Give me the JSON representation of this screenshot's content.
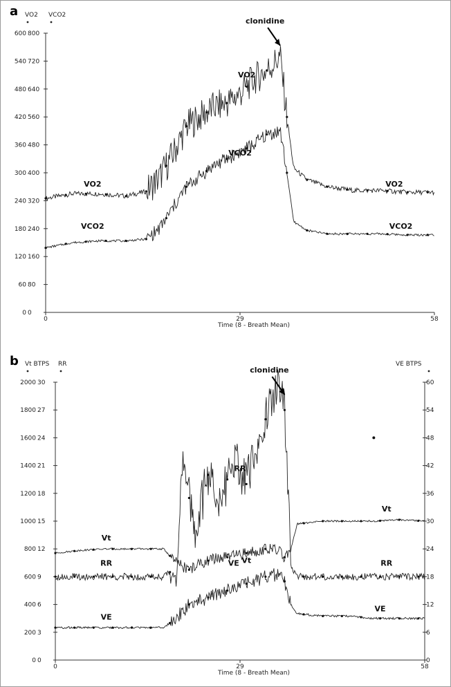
{
  "chart_data": [
    {
      "panel_label": "a",
      "type": "line",
      "left_axis_titles": [
        "VO2",
        "VCO2"
      ],
      "left_ticks": {
        "vo2": [
          0,
          60,
          120,
          180,
          240,
          300,
          360,
          420,
          480,
          540,
          600
        ],
        "vco2": [
          0,
          80,
          160,
          240,
          320,
          400,
          480,
          560,
          640,
          720,
          800
        ]
      },
      "xlabel": "Time (8 - Breath Mean)",
      "x_ticks": [
        0,
        29,
        58
      ],
      "xlim": [
        0,
        58
      ],
      "annotation": "clonidine",
      "annotation_x": 35,
      "series": [
        {
          "name": "VO2",
          "key": "vo2",
          "x": [
            0,
            4,
            8,
            12,
            15,
            17,
            19,
            21,
            23,
            25,
            27,
            29,
            31,
            33,
            35,
            36,
            37,
            39,
            42,
            46,
            50,
            54
          ],
          "y": [
            245,
            255,
            255,
            250,
            260,
            290,
            340,
            400,
            420,
            440,
            450,
            470,
            500,
            520,
            550,
            420,
            310,
            285,
            270,
            262,
            262,
            258
          ],
          "labels": [
            {
              "x": 7,
              "y": 270,
              "text": "VO2"
            },
            {
              "x": 30,
              "y": 505,
              "text": "VO2"
            },
            {
              "x": 52,
              "y": 270,
              "text": "VO2"
            }
          ]
        },
        {
          "name": "VCO2",
          "key": "vco2",
          "x": [
            0,
            4,
            8,
            12,
            15,
            17,
            19,
            21,
            23,
            25,
            27,
            29,
            31,
            33,
            35,
            36,
            37,
            39,
            42,
            46,
            50,
            54
          ],
          "y": [
            185,
            200,
            205,
            205,
            210,
            240,
            300,
            360,
            390,
            420,
            440,
            460,
            480,
            510,
            520,
            400,
            260,
            235,
            225,
            225,
            225,
            222
          ],
          "labels": [
            {
              "x": 7,
              "y": 240,
              "text": "VCO2"
            },
            {
              "x": 29,
              "y": 450,
              "text": "VCO2"
            },
            {
              "x": 53,
              "y": 240,
              "text": "VCO2"
            }
          ]
        }
      ]
    },
    {
      "panel_label": "b",
      "type": "line",
      "left_axis_titles": [
        "Vt BTPS",
        "RR"
      ],
      "right_axis_title": "VE BTPS",
      "left_ticks": {
        "vt": [
          0,
          200,
          400,
          600,
          800,
          1000,
          1200,
          1400,
          1600,
          1800,
          2000
        ],
        "rr": [
          0,
          3,
          6,
          9,
          12,
          15,
          18,
          21,
          24,
          27,
          30
        ]
      },
      "right_ticks": [
        0,
        6,
        12,
        18,
        24,
        30,
        36,
        42,
        48,
        54,
        60
      ],
      "xlabel": "Time (8 - Breath Mean)",
      "x_ticks": [
        0,
        29,
        58
      ],
      "xlim": [
        0,
        58
      ],
      "annotation": "clonidine",
      "annotation_x": 36,
      "series": [
        {
          "name": "Vt",
          "key": "vt",
          "x": [
            0,
            4,
            8,
            12,
            17,
            19,
            21,
            23,
            25,
            27,
            29,
            31,
            33,
            35,
            36,
            37,
            38,
            42,
            46,
            50,
            54,
            58
          ],
          "y": [
            770,
            790,
            800,
            800,
            800,
            700,
            650,
            700,
            730,
            740,
            760,
            780,
            800,
            790,
            740,
            800,
            980,
            1000,
            1000,
            1000,
            1010,
            1000
          ],
          "labels": [
            {
              "x": 8,
              "y": 860,
              "text": "Vt"
            },
            {
              "x": 30,
              "y": 700,
              "text": "Vt"
            },
            {
              "x": 52,
              "y": 1070,
              "text": "Vt"
            }
          ]
        },
        {
          "name": "RR",
          "key": "rr",
          "x": [
            0,
            4,
            8,
            12,
            17,
            19,
            20,
            22,
            24,
            26,
            28,
            30,
            32,
            34,
            35,
            36,
            37,
            38,
            40,
            44,
            50,
            54,
            58
          ],
          "y": [
            9,
            9,
            9,
            9,
            9,
            10,
            21,
            14,
            20,
            17,
            22,
            19,
            24,
            28,
            30,
            27,
            10,
            9,
            9,
            9,
            9,
            9,
            9
          ],
          "labels": [
            {
              "x": 8,
              "y": 10.2,
              "text": "RR"
            },
            {
              "x": 29,
              "y": 20.4,
              "text": "RR"
            },
            {
              "x": 52,
              "y": 10.2,
              "text": "RR"
            }
          ]
        },
        {
          "name": "VE",
          "key": "ve",
          "x": [
            0,
            4,
            8,
            12,
            17,
            19,
            21,
            23,
            25,
            27,
            29,
            31,
            33,
            35,
            36,
            37,
            38,
            42,
            46,
            50,
            54,
            58
          ],
          "y": [
            7,
            7,
            7,
            7,
            7,
            9,
            12,
            13,
            14,
            15,
            16,
            17,
            18,
            18.5,
            17,
            12,
            10,
            9.5,
            9.5,
            9,
            9,
            9
          ],
          "labels": [
            {
              "x": 8,
              "y": 8.7,
              "text": "VE"
            },
            {
              "x": 28,
              "y": 20.4,
              "text": "VE"
            },
            {
              "x": 51,
              "y": 10.5,
              "text": "VE"
            }
          ]
        }
      ]
    }
  ]
}
